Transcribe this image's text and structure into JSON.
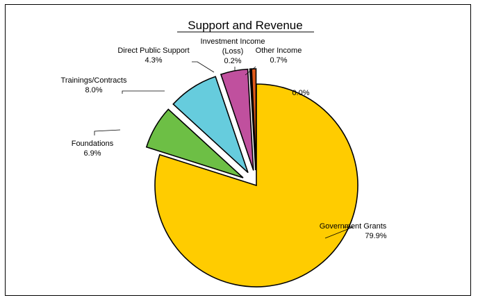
{
  "chart_data": {
    "type": "pie",
    "title": "Support and Revenue",
    "slices": [
      {
        "label": "Government Grants",
        "value": 79.9,
        "pct_label": "79.9%",
        "color": "#FFCC00",
        "exploded": false
      },
      {
        "label": "Foundations",
        "value": 6.9,
        "pct_label": "6.9%",
        "color": "#6DBF45",
        "exploded": true
      },
      {
        "label": "Trainings/Contracts",
        "value": 8.0,
        "pct_label": "8.0%",
        "color": "#66CCDD",
        "exploded": true
      },
      {
        "label": "Direct Public Support",
        "value": 4.3,
        "pct_label": "4.3%",
        "color": "#C0509E",
        "exploded": true
      },
      {
        "label": "Investment Income (Loss)",
        "value": 0.2,
        "pct_label": "0.2%",
        "color": "#000080",
        "exploded": true
      },
      {
        "label": "Other Income",
        "value": 0.7,
        "pct_label": "0.7%",
        "color": "#E05A1A",
        "exploded": true
      },
      {
        "label": "",
        "value": 0.0,
        "pct_label": "0.0%",
        "color": "#999999",
        "exploded": true
      }
    ],
    "legend": "none"
  }
}
